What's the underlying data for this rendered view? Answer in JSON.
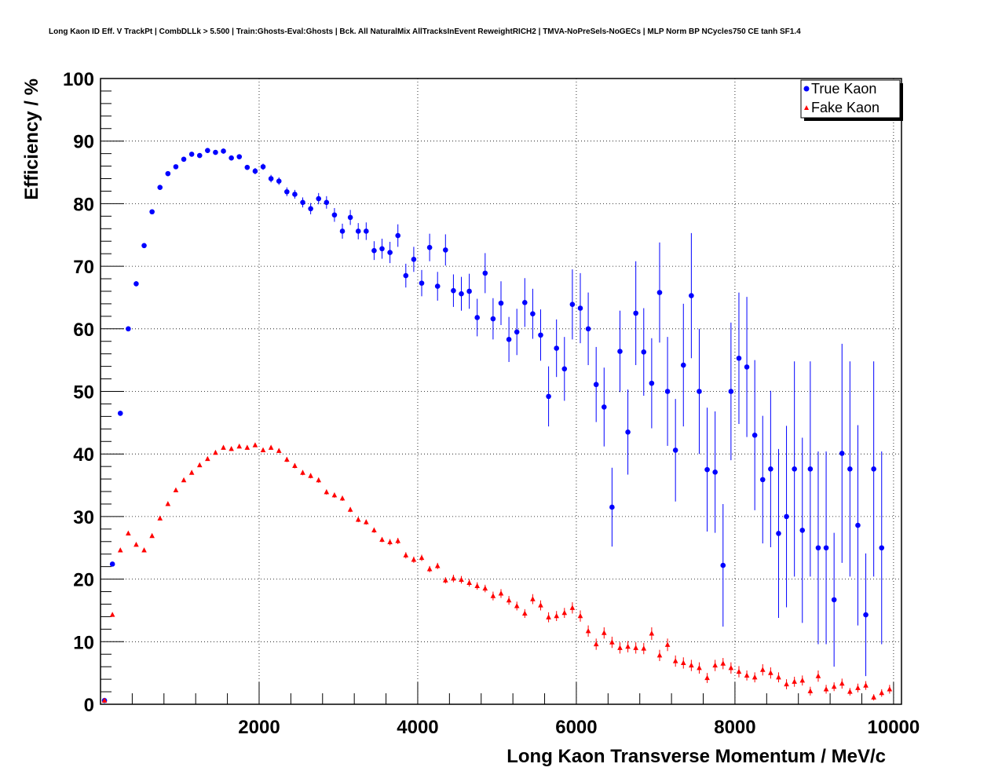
{
  "chart_data": {
    "type": "scatter",
    "title": "Long Kaon ID Eff. V TrackPt | CombDLLk > 5.500 | Train:Ghosts-Eval:Ghosts | Bck. All NaturalMix AllTracksInEvent ReweightRICH2 | TMVA-NoPreSels-NoGECs | MLP Norm BP NCycles750 CE tanh SF1.4",
    "xlabel": "Long Kaon Transverse Momentum / MeV/c",
    "ylabel": "Efficiency / %",
    "xlim": [
      0,
      10100
    ],
    "ylim": [
      0,
      100
    ],
    "x_ticks": [
      2000,
      4000,
      6000,
      8000,
      10000
    ],
    "y_ticks": [
      0,
      10,
      20,
      30,
      40,
      50,
      60,
      70,
      80,
      90,
      100
    ],
    "grid": true,
    "legend_position": "top-right",
    "series": [
      {
        "name": "True Kaon",
        "color": "#0000ff",
        "marker": "circle",
        "points": [
          [
            50,
            0.6,
            0.2
          ],
          [
            150,
            22.4,
            0.3
          ],
          [
            250,
            46.5,
            0.4
          ],
          [
            350,
            60.0,
            0.4
          ],
          [
            450,
            67.2,
            0.4
          ],
          [
            550,
            73.3,
            0.4
          ],
          [
            650,
            78.7,
            0.4
          ],
          [
            750,
            82.6,
            0.3
          ],
          [
            850,
            84.8,
            0.3
          ],
          [
            950,
            85.9,
            0.3
          ],
          [
            1050,
            87.1,
            0.3
          ],
          [
            1150,
            87.9,
            0.3
          ],
          [
            1250,
            87.7,
            0.3
          ],
          [
            1350,
            88.5,
            0.3
          ],
          [
            1450,
            88.2,
            0.3
          ],
          [
            1550,
            88.4,
            0.4
          ],
          [
            1650,
            87.3,
            0.4
          ],
          [
            1750,
            87.5,
            0.4
          ],
          [
            1850,
            85.8,
            0.4
          ],
          [
            1950,
            85.2,
            0.5
          ],
          [
            2050,
            85.9,
            0.5
          ],
          [
            2150,
            84.0,
            0.6
          ],
          [
            2250,
            83.6,
            0.6
          ],
          [
            2350,
            81.9,
            0.7
          ],
          [
            2450,
            81.5,
            0.7
          ],
          [
            2550,
            80.2,
            0.8
          ],
          [
            2650,
            79.2,
            0.9
          ],
          [
            2750,
            80.8,
            0.9
          ],
          [
            2850,
            80.2,
            1.0
          ],
          [
            2950,
            78.2,
            1.1
          ],
          [
            3050,
            75.6,
            1.2
          ],
          [
            3150,
            77.8,
            1.2
          ],
          [
            3250,
            75.6,
            1.3
          ],
          [
            3350,
            75.6,
            1.4
          ],
          [
            3450,
            72.5,
            1.5
          ],
          [
            3550,
            72.8,
            1.6
          ],
          [
            3650,
            72.2,
            1.7
          ],
          [
            3750,
            74.9,
            1.8
          ],
          [
            3850,
            68.5,
            1.9
          ],
          [
            3950,
            71.1,
            2.0
          ],
          [
            4050,
            67.3,
            2.1
          ],
          [
            4150,
            73.0,
            2.2
          ],
          [
            4250,
            66.8,
            2.3
          ],
          [
            4350,
            72.6,
            2.5
          ],
          [
            4450,
            66.1,
            2.6
          ],
          [
            4550,
            65.6,
            2.7
          ],
          [
            4650,
            66.0,
            2.8
          ],
          [
            4750,
            61.8,
            3.0
          ],
          [
            4850,
            68.9,
            3.2
          ],
          [
            4950,
            61.6,
            3.3
          ],
          [
            5050,
            64.1,
            3.5
          ],
          [
            5150,
            58.3,
            3.6
          ],
          [
            5250,
            59.5,
            3.7
          ],
          [
            5350,
            64.2,
            3.9
          ],
          [
            5450,
            62.4,
            4.0
          ],
          [
            5550,
            59.0,
            4.1
          ],
          [
            5650,
            49.2,
            4.8
          ],
          [
            5750,
            56.9,
            4.6
          ],
          [
            5850,
            53.6,
            5.1
          ],
          [
            5950,
            63.9,
            5.6
          ],
          [
            6050,
            63.3,
            5.6
          ],
          [
            6150,
            60.0,
            5.8
          ],
          [
            6250,
            51.1,
            6.0
          ],
          [
            6350,
            47.5,
            6.3
          ],
          [
            6450,
            31.5,
            6.3
          ],
          [
            6550,
            56.4,
            6.5
          ],
          [
            6650,
            43.5,
            6.8
          ],
          [
            6750,
            62.5,
            8.3
          ],
          [
            6850,
            56.3,
            7.0
          ],
          [
            6950,
            51.3,
            7.2
          ],
          [
            7050,
            65.8,
            8.0
          ],
          [
            7150,
            50.0,
            8.7
          ],
          [
            7250,
            40.6,
            8.2
          ],
          [
            7350,
            54.2,
            9.8
          ],
          [
            7450,
            65.3,
            10.0
          ],
          [
            7550,
            50.0,
            10.0
          ],
          [
            7650,
            37.5,
            9.9
          ],
          [
            7750,
            37.1,
            9.7
          ],
          [
            7850,
            22.2,
            9.8
          ],
          [
            7950,
            50.0,
            11.0
          ],
          [
            8050,
            55.3,
            10.5
          ],
          [
            8150,
            53.9,
            11.2
          ],
          [
            8250,
            43.0,
            12.0
          ],
          [
            8350,
            35.9,
            10.2
          ],
          [
            8450,
            37.6,
            12.5
          ],
          [
            8550,
            27.3,
            13.5
          ],
          [
            8650,
            30.0,
            14.5
          ],
          [
            8750,
            37.6,
            17.2
          ],
          [
            8850,
            27.8,
            14.8
          ],
          [
            8950,
            37.6,
            17.2
          ],
          [
            9050,
            25.0,
            15.4
          ],
          [
            9150,
            25.0,
            15.4
          ],
          [
            9250,
            16.7,
            10.7
          ],
          [
            9350,
            40.1,
            17.5
          ],
          [
            9450,
            37.6,
            17.2
          ],
          [
            9550,
            28.6,
            16.0
          ],
          [
            9650,
            14.3,
            9.8
          ],
          [
            9750,
            37.6,
            17.2
          ],
          [
            9850,
            25.0,
            15.4
          ]
        ]
      },
      {
        "name": "Fake Kaon",
        "color": "#ff0000",
        "marker": "triangle",
        "points": [
          [
            50,
            0.6,
            0.2
          ],
          [
            150,
            14.3,
            0.3
          ],
          [
            250,
            24.6,
            0.3
          ],
          [
            350,
            27.3,
            0.3
          ],
          [
            450,
            25.5,
            0.3
          ],
          [
            550,
            24.6,
            0.3
          ],
          [
            650,
            26.9,
            0.3
          ],
          [
            750,
            29.7,
            0.3
          ],
          [
            850,
            32.0,
            0.3
          ],
          [
            950,
            34.2,
            0.3
          ],
          [
            1050,
            35.8,
            0.3
          ],
          [
            1150,
            37.0,
            0.3
          ],
          [
            1250,
            38.2,
            0.3
          ],
          [
            1350,
            39.2,
            0.3
          ],
          [
            1450,
            40.2,
            0.3
          ],
          [
            1550,
            41.0,
            0.3
          ],
          [
            1650,
            40.8,
            0.3
          ],
          [
            1750,
            41.2,
            0.3
          ],
          [
            1850,
            41.0,
            0.3
          ],
          [
            1950,
            41.4,
            0.3
          ],
          [
            2050,
            40.6,
            0.3
          ],
          [
            2150,
            41.0,
            0.3
          ],
          [
            2250,
            40.5,
            0.3
          ],
          [
            2350,
            39.1,
            0.4
          ],
          [
            2450,
            38.1,
            0.4
          ],
          [
            2550,
            37.0,
            0.4
          ],
          [
            2650,
            36.5,
            0.4
          ],
          [
            2750,
            35.8,
            0.4
          ],
          [
            2850,
            33.9,
            0.4
          ],
          [
            2950,
            33.4,
            0.4
          ],
          [
            3050,
            32.9,
            0.4
          ],
          [
            3150,
            31.1,
            0.4
          ],
          [
            3250,
            29.5,
            0.4
          ],
          [
            3350,
            29.1,
            0.4
          ],
          [
            3450,
            27.8,
            0.4
          ],
          [
            3550,
            26.3,
            0.4
          ],
          [
            3650,
            25.9,
            0.5
          ],
          [
            3750,
            26.1,
            0.5
          ],
          [
            3850,
            23.8,
            0.5
          ],
          [
            3950,
            23.1,
            0.5
          ],
          [
            4050,
            23.4,
            0.5
          ],
          [
            4150,
            21.6,
            0.5
          ],
          [
            4250,
            22.1,
            0.5
          ],
          [
            4350,
            19.8,
            0.5
          ],
          [
            4450,
            20.1,
            0.6
          ],
          [
            4550,
            19.9,
            0.6
          ],
          [
            4650,
            19.4,
            0.6
          ],
          [
            4750,
            18.9,
            0.6
          ],
          [
            4850,
            18.5,
            0.6
          ],
          [
            4950,
            17.3,
            0.7
          ],
          [
            5050,
            17.7,
            0.7
          ],
          [
            5150,
            16.6,
            0.7
          ],
          [
            5250,
            15.7,
            0.7
          ],
          [
            5350,
            14.5,
            0.7
          ],
          [
            5450,
            16.8,
            0.8
          ],
          [
            5550,
            15.8,
            0.8
          ],
          [
            5650,
            13.9,
            0.8
          ],
          [
            5750,
            14.1,
            0.8
          ],
          [
            5850,
            14.6,
            0.8
          ],
          [
            5950,
            15.4,
            0.9
          ],
          [
            6050,
            14.1,
            0.9
          ],
          [
            6150,
            11.7,
            0.9
          ],
          [
            6250,
            9.6,
            0.9
          ],
          [
            6350,
            11.4,
            0.9
          ],
          [
            6450,
            9.9,
            0.9
          ],
          [
            6550,
            9.0,
            0.9
          ],
          [
            6650,
            9.2,
            0.9
          ],
          [
            6750,
            9.0,
            0.9
          ],
          [
            6850,
            8.9,
            0.9
          ],
          [
            6950,
            11.3,
            1.0
          ],
          [
            7050,
            7.8,
            0.9
          ],
          [
            7150,
            9.5,
            1.0
          ],
          [
            7250,
            6.9,
            0.9
          ],
          [
            7350,
            6.6,
            0.9
          ],
          [
            7450,
            6.2,
            0.9
          ],
          [
            7550,
            5.8,
            0.9
          ],
          [
            7650,
            4.2,
            0.8
          ],
          [
            7750,
            6.2,
            0.9
          ],
          [
            7850,
            6.5,
            0.9
          ],
          [
            7950,
            5.8,
            0.9
          ],
          [
            8050,
            5.2,
            0.9
          ],
          [
            8150,
            4.6,
            0.8
          ],
          [
            8250,
            4.3,
            0.8
          ],
          [
            8350,
            5.5,
            0.9
          ],
          [
            8450,
            5.0,
            0.9
          ],
          [
            8550,
            4.3,
            0.8
          ],
          [
            8650,
            3.2,
            0.8
          ],
          [
            8750,
            3.6,
            0.8
          ],
          [
            8850,
            3.8,
            0.8
          ],
          [
            8950,
            2.1,
            0.7
          ],
          [
            9050,
            4.5,
            0.9
          ],
          [
            9150,
            2.4,
            0.7
          ],
          [
            9250,
            2.8,
            0.7
          ],
          [
            9350,
            3.3,
            0.8
          ],
          [
            9450,
            2.0,
            0.6
          ],
          [
            9550,
            2.6,
            0.7
          ],
          [
            9650,
            3.0,
            0.7
          ],
          [
            9750,
            1.1,
            0.5
          ],
          [
            9850,
            1.8,
            0.6
          ],
          [
            9950,
            2.4,
            0.7
          ]
        ]
      }
    ]
  }
}
